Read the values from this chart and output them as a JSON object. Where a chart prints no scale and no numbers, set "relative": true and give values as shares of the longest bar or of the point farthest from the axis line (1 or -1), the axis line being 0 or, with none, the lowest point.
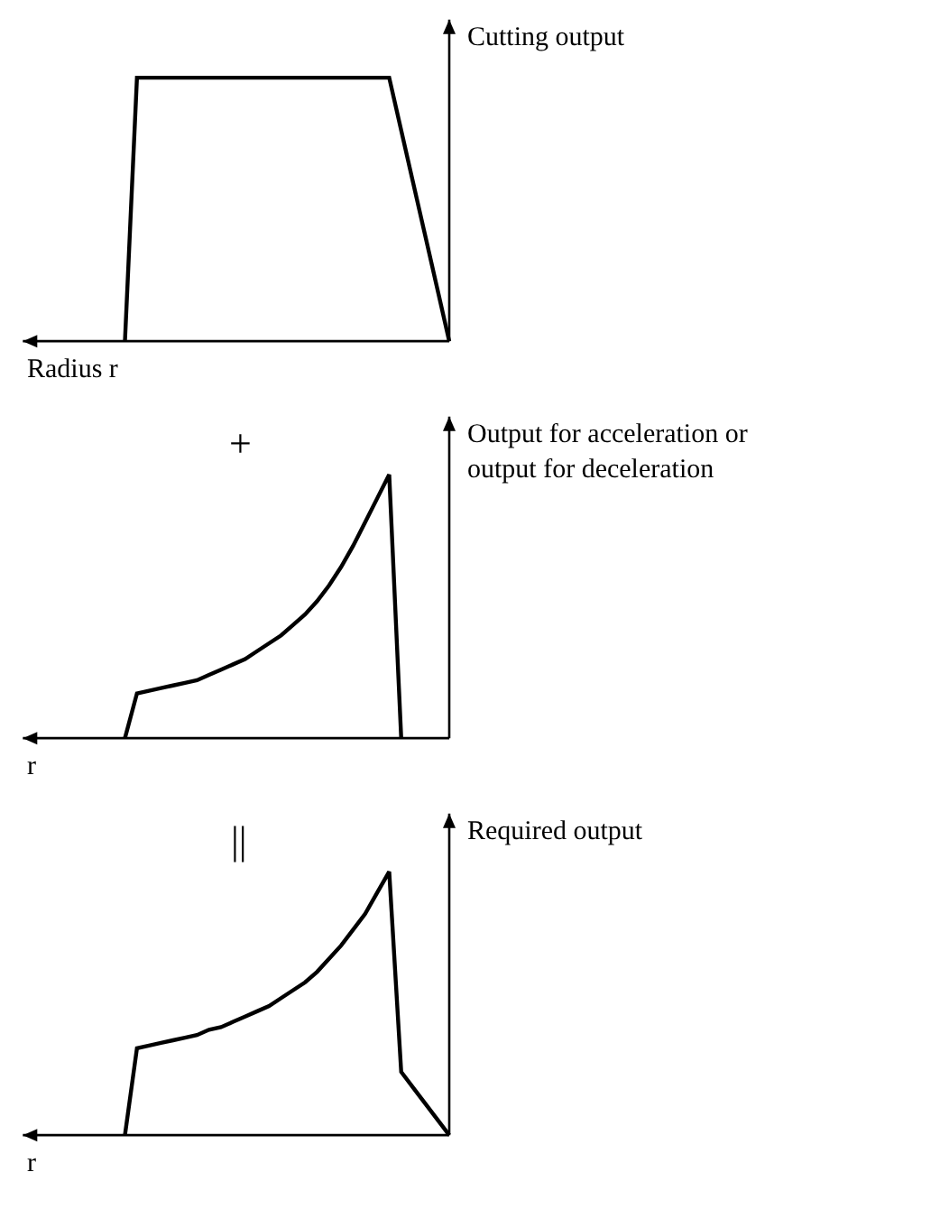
{
  "chart_data": [
    {
      "type": "line",
      "relative": true,
      "ylabel": "Cutting output",
      "xlabel": "Radius r",
      "tick_labels": false,
      "grid": false,
      "marker": "none",
      "line_style": "solid",
      "categories": [
        null,
        null,
        null,
        null,
        null,
        null,
        null,
        null,
        null,
        null,
        null,
        null,
        null,
        null,
        null,
        null,
        null,
        null,
        null,
        null,
        null,
        null,
        null,
        null,
        null,
        null,
        null,
        null,
        null,
        null,
        null,
        null,
        null,
        null,
        null,
        null
      ],
      "series": [
        {
          "color": "#000000",
          "values": [
            null,
            null,
            null,
            null,
            null,
            null,
            null,
            null,
            0,
            1,
            1,
            1,
            1,
            1,
            1,
            1,
            1,
            1,
            1,
            1,
            1,
            1,
            1,
            1,
            1,
            1,
            1,
            1,
            1,
            1,
            1,
            0.8,
            0.6,
            0.4,
            0.2,
            0
          ]
        }
      ]
    },
    {
      "type": "line",
      "relative": true,
      "ylabel": "Output for acceleration or\noutput for deceleration",
      "xlabel": "r",
      "annotations": [
        "+"
      ],
      "tick_labels": false,
      "grid": false,
      "marker": "none",
      "line_style": "solid",
      "categories": [
        null,
        null,
        null,
        null,
        null,
        null,
        null,
        null,
        null,
        null,
        null,
        null,
        null,
        null,
        null,
        null,
        null,
        null,
        null,
        null,
        null,
        null,
        null,
        null,
        null,
        null,
        null,
        null,
        null,
        null,
        null,
        null,
        null,
        null,
        null,
        null
      ],
      "series": [
        {
          "color": "#000000",
          "values": [
            null,
            null,
            null,
            null,
            null,
            null,
            null,
            null,
            0,
            0.17,
            0.18,
            0.19,
            0.2,
            0.21,
            0.22,
            0.24,
            0.26,
            0.28,
            0.3,
            0.33,
            0.36,
            0.39,
            0.43,
            0.47,
            0.52,
            0.58,
            0.65,
            0.73,
            0.82,
            0.91,
            1,
            0,
            null,
            null,
            null,
            null
          ]
        }
      ]
    },
    {
      "type": "line",
      "relative": true,
      "ylabel": "Required output",
      "xlabel": "r",
      "annotations": [
        "||"
      ],
      "tick_labels": false,
      "grid": false,
      "marker": "none",
      "line_style": "solid",
      "categories": [
        null,
        null,
        null,
        null,
        null,
        null,
        null,
        null,
        null,
        null,
        null,
        null,
        null,
        null,
        null,
        null,
        null,
        null,
        null,
        null,
        null,
        null,
        null,
        null,
        null,
        null,
        null,
        null,
        null,
        null,
        null,
        null,
        null,
        null,
        null,
        null
      ],
      "series": [
        {
          "color": "#000000",
          "values": [
            null,
            null,
            null,
            null,
            null,
            null,
            null,
            null,
            0,
            0.33,
            0.34,
            0.35,
            0.36,
            0.37,
            0.38,
            0.4,
            0.41,
            0.43,
            0.45,
            0.47,
            0.49,
            0.52,
            0.55,
            0.58,
            0.62,
            0.67,
            0.72,
            0.78,
            0.84,
            0.92,
            1,
            0.24,
            0.18,
            0.12,
            0.06,
            0
          ]
        }
      ]
    }
  ]
}
